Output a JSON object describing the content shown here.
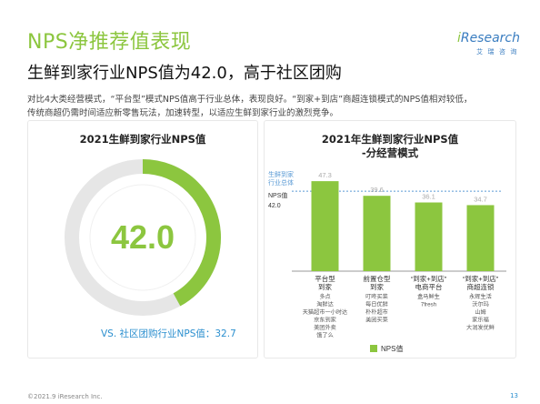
{
  "page": {
    "title": "NPS净推荐值表现",
    "headline": "生鲜到家行业NPS值为42.0，高于社区团购",
    "body": [
      "对比4大类经营模式，“平台型”模式NPS值高于行业总体，表现良好。“到家+到店”商超连锁模式的NPS值相对较低，",
      "传统商超仍需时间适应新零售玩法，加速转型，以适应生鲜到家行业的激烈竞争。"
    ]
  },
  "logo": {
    "text_i": "i",
    "text_rest": "Research",
    "sub": "艾 瑞 咨 询"
  },
  "left_panel": {
    "title": "2021生鲜到家行业NPS值",
    "big_value": "42.0",
    "compare_label": "VS. 社区团购行业NPS值：32.7"
  },
  "chart_data": {
    "type": "bar",
    "title": "2021年生鲜到家行业NPS值",
    "subtitle": "-分经营模式",
    "categories": [
      "平台型\n到家",
      "前置仓型\n到家",
      "“到家+到店”\n电商平台",
      "“到家+到店”\n商超连锁"
    ],
    "category_sublabels": [
      [
        "多点",
        "淘鲜达",
        "天猫超市一小时达",
        "京东到家",
        "美团外卖",
        "饿了么"
      ],
      [
        "叮咚买菜",
        "每日优鲜",
        "朴朴超市",
        "美团买菜"
      ],
      [
        "盒马鲜生",
        "7fresh"
      ],
      [
        "永辉生活",
        "沃尔玛",
        "山姆",
        "家乐福",
        "大润发优鲜"
      ]
    ],
    "values": [
      47.3,
      39.6,
      36.1,
      34.7
    ],
    "value_labels": [
      "47.3",
      "39.6",
      "36.1",
      "34.7"
    ],
    "reference_line": {
      "label": "生鲜到家\n行业总体",
      "value": 42.0,
      "axis_label": "NPS值",
      "axis_value": "42.0"
    },
    "legend": [
      "NPS值"
    ],
    "ylim": [
      0,
      55
    ],
    "colors": {
      "bar": "#8cc63f",
      "reference": "#5b9bd5"
    }
  },
  "donut": {
    "value_fraction": 0.42,
    "colors": {
      "ring": "#8cc63f",
      "track": "#e6e6e6"
    }
  },
  "footer": {
    "copyright": "©2021.9 iResearch Inc.",
    "page_number": "13"
  }
}
